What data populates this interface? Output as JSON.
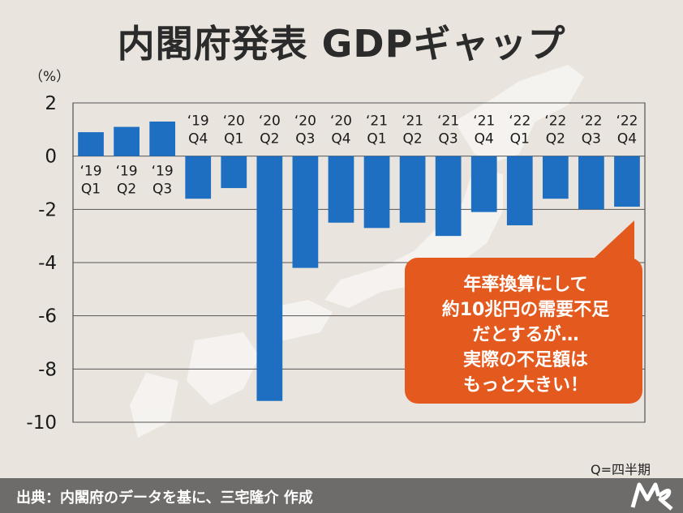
{
  "title": "内閣府発表 GDPギャップ",
  "unit": "（%）",
  "callout": {
    "lines": [
      "年率換算にして",
      "約10兆円の需要不足",
      "だとするが…",
      "実際の不足額は",
      "もっと大きい！"
    ]
  },
  "period_note": "Q=四半期",
  "source": "出典：内閣府のデータを基に、三宅隆介 作成",
  "logo": "M R",
  "colors": {
    "bar": "#1e6fc1",
    "callout": "#e4591e",
    "background": "#e9e4dd",
    "footer": "#6e6c6a"
  },
  "chart_data": {
    "type": "bar",
    "categories": [
      [
        "‘19",
        "Q1"
      ],
      [
        "‘19",
        "Q2"
      ],
      [
        "‘19",
        "Q3"
      ],
      [
        "‘19",
        "Q4"
      ],
      [
        "‘20",
        "Q1"
      ],
      [
        "‘20",
        "Q2"
      ],
      [
        "‘20",
        "Q3"
      ],
      [
        "‘20",
        "Q4"
      ],
      [
        "‘21",
        "Q1"
      ],
      [
        "‘21",
        "Q2"
      ],
      [
        "‘21",
        "Q3"
      ],
      [
        "‘21",
        "Q4"
      ],
      [
        "‘22",
        "Q1"
      ],
      [
        "‘22",
        "Q2"
      ],
      [
        "‘22",
        "Q3"
      ],
      [
        "‘22",
        "Q4"
      ]
    ],
    "values": [
      0.9,
      1.1,
      1.3,
      -1.6,
      -1.2,
      -9.2,
      -4.2,
      -2.5,
      -2.7,
      -2.5,
      -3.0,
      -2.1,
      -2.6,
      -1.6,
      -2.0,
      -1.9
    ],
    "ylim": [
      -10,
      2
    ],
    "yticks": [
      2,
      0,
      -2,
      -4,
      -6,
      -8,
      -10
    ],
    "grid": true
  }
}
